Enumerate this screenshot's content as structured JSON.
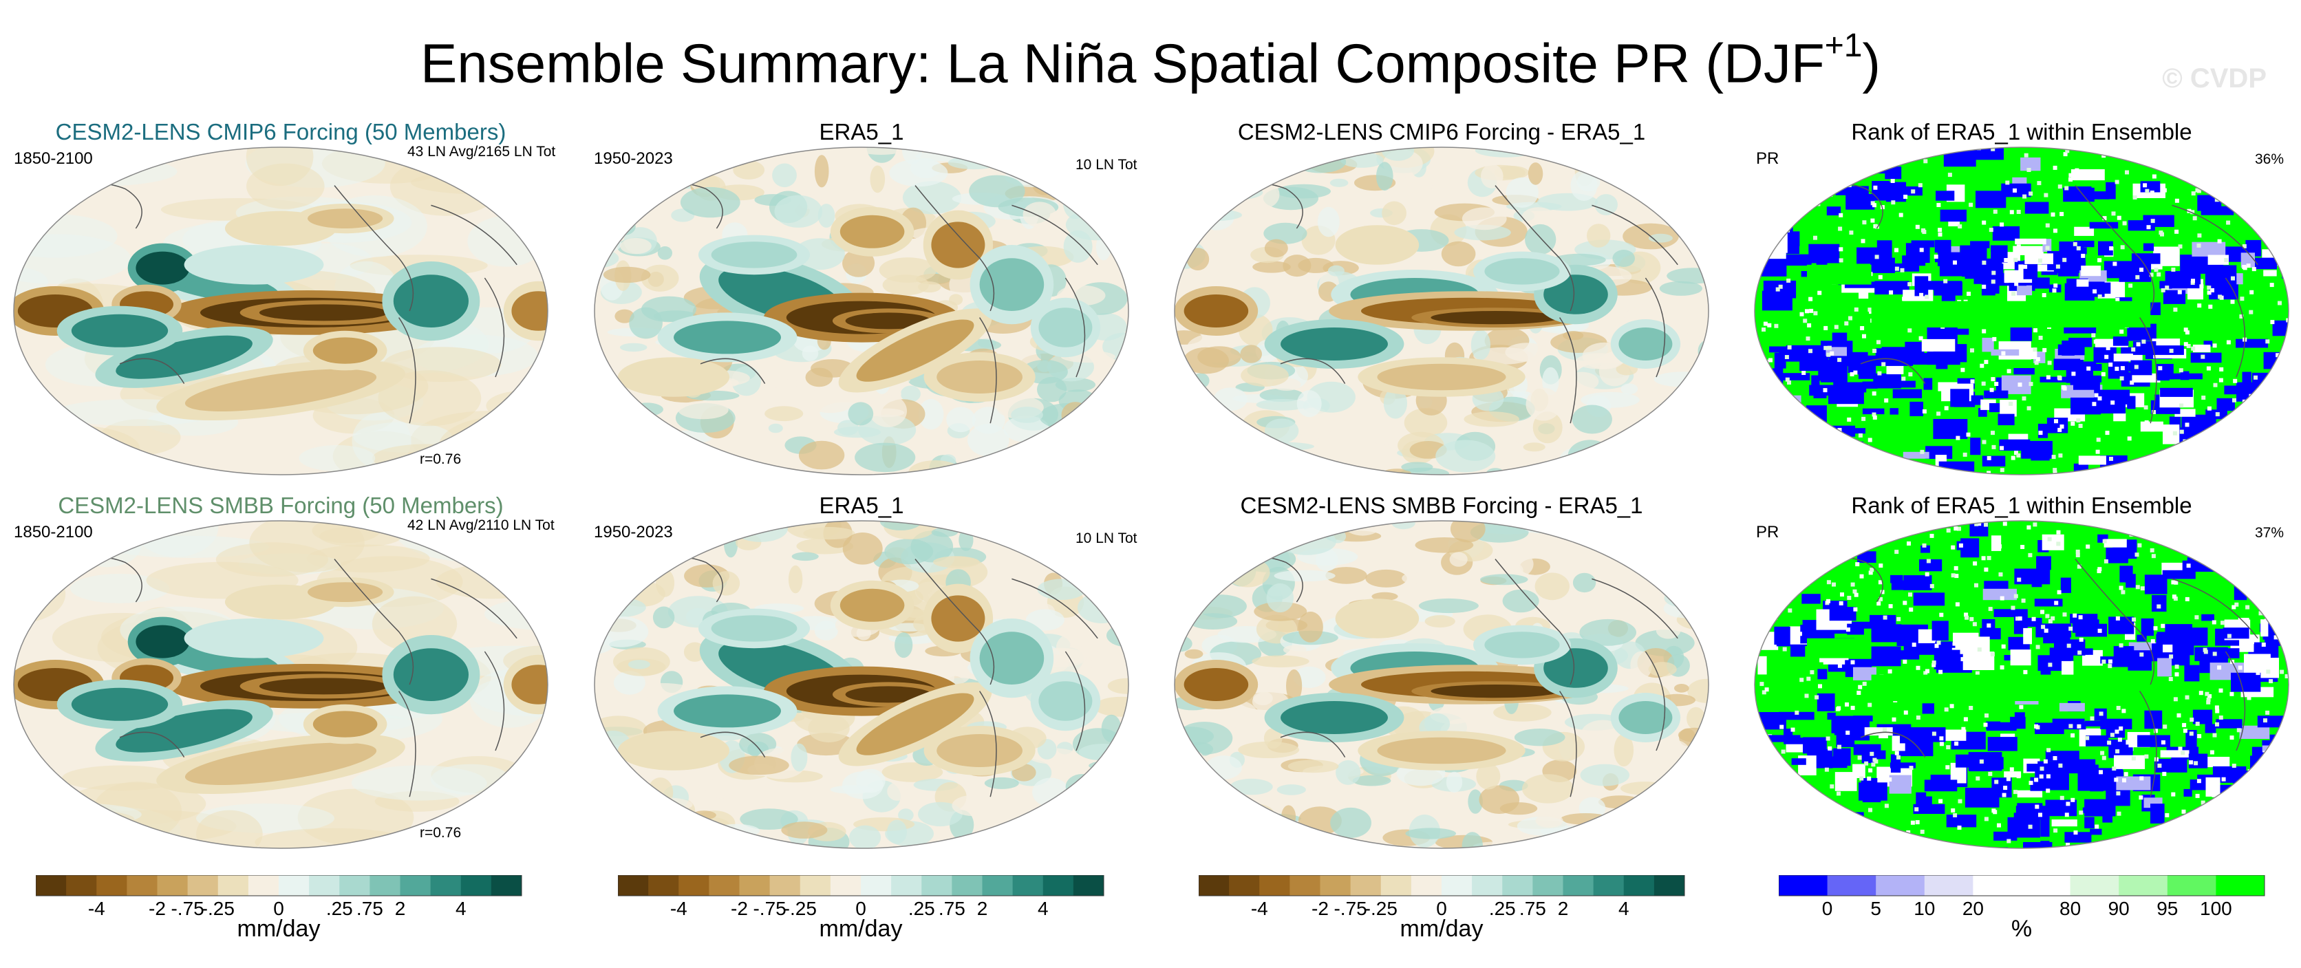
{
  "title": {
    "main": "Ensemble Summary: La Niña Spatial Composite PR (DJF",
    "sup": "+1",
    "close": ")"
  },
  "watermark": "© CVDP",
  "rows": [
    {
      "model_title": "CESM2-LENS CMIP6 Forcing (50 Members)",
      "model_title_color": "#1b6d7f",
      "model_years": "1850-2100",
      "model_count": "43 LN Avg/2165 LN Tot",
      "model_corr": "r=0.76",
      "obs_title": "ERA5_1",
      "obs_years": "1950-2023",
      "obs_count": "10 LN Tot",
      "diff_title": "CESM2-LENS CMIP6 Forcing - ERA5_1",
      "rank_title": "Rank of ERA5_1 within Ensemble",
      "rank_var": "PR",
      "rank_pct": "36%"
    },
    {
      "model_title": "CESM2-LENS SMBB Forcing (50 Members)",
      "model_title_color": "#5f8f6a",
      "model_years": "1850-2100",
      "model_count": "42 LN Avg/2110 LN Tot",
      "model_corr": "r=0.76",
      "obs_title": "ERA5_1",
      "obs_years": "1950-2023",
      "obs_count": "10 LN Tot",
      "diff_title": "CESM2-LENS SMBB Forcing - ERA5_1",
      "rank_title": "Rank of ERA5_1 within Ensemble",
      "rank_var": "PR",
      "rank_pct": "37%"
    }
  ],
  "colorbars": {
    "pr": {
      "colors": [
        "#5b3a0c",
        "#7a4e12",
        "#9a661e",
        "#b5843a",
        "#c9a25c",
        "#dcc08a",
        "#ece0bc",
        "#f6efe2",
        "#e9f4f1",
        "#cde9e3",
        "#a9d9cf",
        "#7fc3b5",
        "#52a89a",
        "#2d8a7d",
        "#136c60",
        "#0a4f45"
      ],
      "labels": [
        "-4",
        "-2",
        "-.75",
        "-.25",
        "0",
        ".25",
        ".75",
        "2",
        "4"
      ],
      "unit": "mm/day"
    },
    "rank": {
      "colors": [
        "#0000ff",
        "#6565f7",
        "#b3b3f7",
        "#dfdff7",
        "#ffffff",
        "#ffffff",
        "#ddf7dd",
        "#b3f7b3",
        "#61f761",
        "#00ff00"
      ],
      "labels": [
        "0",
        "5",
        "10",
        "20",
        "80",
        "90",
        "95",
        "100"
      ],
      "unit": "%"
    }
  },
  "chart_data": {
    "type": "heatmap",
    "title": "Ensemble Summary: La Niña Spatial Composite PR (DJF+1)",
    "panels": [
      {
        "row": 0,
        "col": 0,
        "title": "CESM2-LENS CMIP6 Forcing (50 Members)",
        "period": "1850-2100",
        "events": "43 LN Avg/2165 LN Tot",
        "pattern_correlation": 0.76,
        "units": "mm/day"
      },
      {
        "row": 0,
        "col": 1,
        "title": "ERA5_1",
        "period": "1950-2023",
        "events": "10 LN Tot",
        "units": "mm/day"
      },
      {
        "row": 0,
        "col": 2,
        "title": "CESM2-LENS CMIP6 Forcing - ERA5_1",
        "units": "mm/day"
      },
      {
        "row": 0,
        "col": 3,
        "title": "Rank of ERA5_1 within Ensemble",
        "variable": "PR",
        "percent_outside_10_90": 36,
        "units": "%"
      },
      {
        "row": 1,
        "col": 0,
        "title": "CESM2-LENS SMBB Forcing (50 Members)",
        "period": "1850-2100",
        "events": "42 LN Avg/2110 LN Tot",
        "pattern_correlation": 0.76,
        "units": "mm/day"
      },
      {
        "row": 1,
        "col": 1,
        "title": "ERA5_1",
        "period": "1950-2023",
        "events": "10 LN Tot",
        "units": "mm/day"
      },
      {
        "row": 1,
        "col": 2,
        "title": "CESM2-LENS SMBB Forcing - ERA5_1",
        "units": "mm/day"
      },
      {
        "row": 1,
        "col": 3,
        "title": "Rank of ERA5_1 within Ensemble",
        "variable": "PR",
        "percent_outside_10_90": 37,
        "units": "%"
      }
    ],
    "pr_contour_levels": [
      -4,
      -2,
      -0.75,
      -0.25,
      0,
      0.25,
      0.75,
      2,
      4
    ],
    "rank_levels": [
      0,
      5,
      10,
      20,
      80,
      90,
      95,
      100
    ]
  }
}
